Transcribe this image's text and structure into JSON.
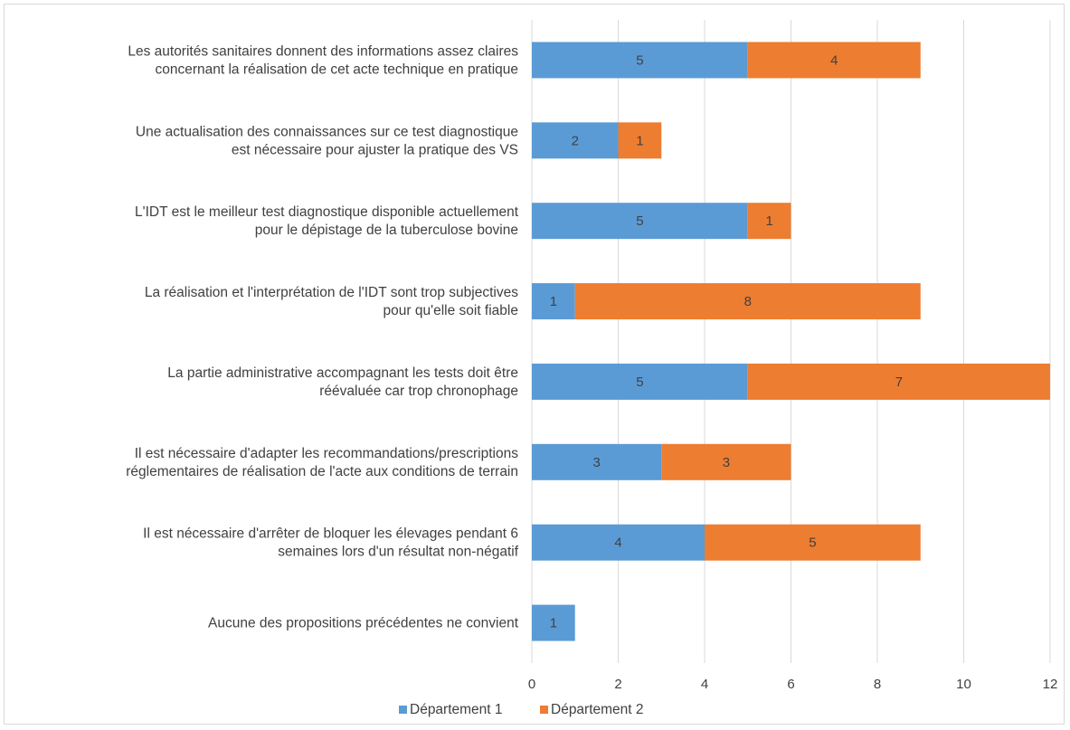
{
  "chart_data": {
    "type": "bar",
    "orientation": "horizontal",
    "stacked": true,
    "categories": [
      [
        "Les autorités sanitaires donnent des informations assez claires",
        "concernant la réalisation de cet acte technique en pratique"
      ],
      [
        "Une actualisation des connaissances sur ce test diagnostique",
        "est nécessaire pour ajuster la pratique des VS"
      ],
      [
        "L'IDT est le meilleur test diagnostique disponible actuellement",
        "pour le dépistage de la tuberculose bovine"
      ],
      [
        "La réalisation et l'interprétation de l'IDT sont trop subjectives",
        "pour qu'elle soit fiable"
      ],
      [
        "La partie administrative accompagnant les tests doit être",
        "réévaluée car trop chronophage"
      ],
      [
        "Il est nécessaire d'adapter les recommandations/prescriptions",
        "réglementaires de réalisation de l'acte aux conditions de terrain"
      ],
      [
        "Il est nécessaire d'arrêter de bloquer les élevages pendant 6",
        "semaines lors d'un résultat non-négatif"
      ],
      [
        "Aucune des propositions précédentes ne convient"
      ]
    ],
    "series": [
      {
        "name": "Département 1",
        "color": "#5b9bd5",
        "values": [
          5,
          2,
          5,
          1,
          5,
          3,
          4,
          1
        ]
      },
      {
        "name": "Département 2",
        "color": "#ed7d31",
        "values": [
          4,
          1,
          1,
          8,
          7,
          3,
          5,
          0
        ]
      }
    ],
    "xlim": [
      0,
      12
    ],
    "xticks": [
      "0",
      "2",
      "4",
      "6",
      "8",
      "10",
      "12"
    ],
    "grid": true,
    "legend_position": "bottom",
    "title": "",
    "xlabel": "",
    "ylabel": ""
  }
}
